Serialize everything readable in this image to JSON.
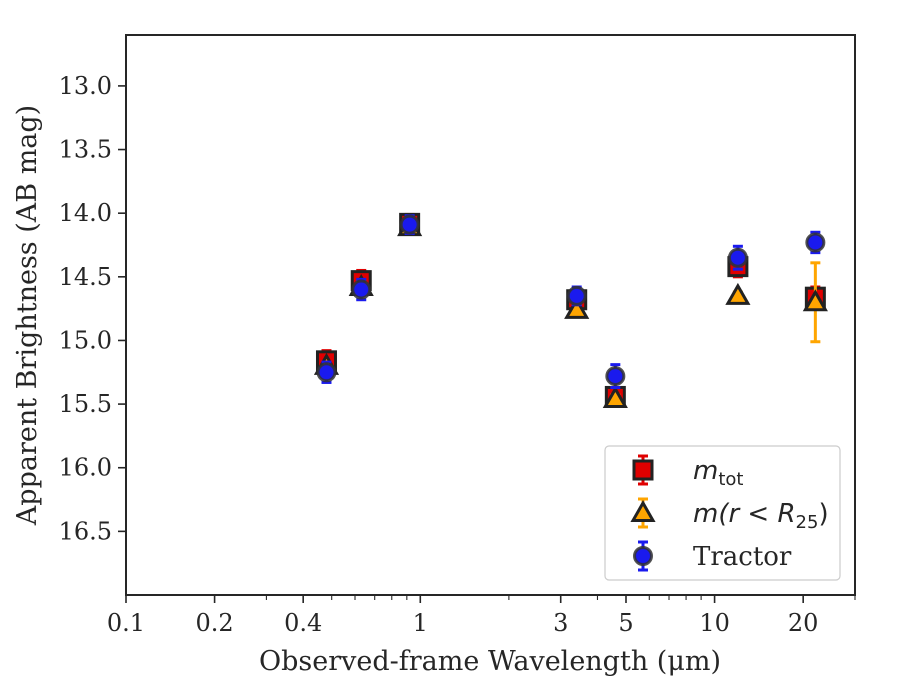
{
  "chart_data": {
    "type": "scatter",
    "xlabel": "Observed-frame Wavelength (μm)",
    "ylabel": "Apparent Brightness (AB mag)",
    "xscale": "log",
    "xlim": [
      0.1,
      30
    ],
    "ylim": [
      17.0,
      12.6
    ],
    "y_inverted": true,
    "xtick_labels": [
      {
        "value": 0.1,
        "label": "0.1"
      },
      {
        "value": 0.2,
        "label": "0.2"
      },
      {
        "value": 0.4,
        "label": "0.4"
      },
      {
        "value": 1,
        "label": "1"
      },
      {
        "value": 3,
        "label": "3"
      },
      {
        "value": 5,
        "label": "5"
      },
      {
        "value": 10,
        "label": "10"
      },
      {
        "value": 20,
        "label": "20"
      }
    ],
    "ytick_labels": [
      {
        "value": 13.0,
        "label": "13.0"
      },
      {
        "value": 13.5,
        "label": "13.5"
      },
      {
        "value": 14.0,
        "label": "14.0"
      },
      {
        "value": 14.5,
        "label": "14.5"
      },
      {
        "value": 15.0,
        "label": "15.0"
      },
      {
        "value": 15.5,
        "label": "15.5"
      },
      {
        "value": 16.0,
        "label": "16.0"
      },
      {
        "value": 16.5,
        "label": "16.5"
      }
    ],
    "grid": false,
    "legend_position": "bottom-right",
    "series": [
      {
        "name": "m_tot",
        "legend_main": "m",
        "legend_sub": "tot",
        "legend_tail": "",
        "marker": "square",
        "color": "#e00000",
        "points": [
          {
            "x": 0.48,
            "y": 15.16,
            "err": 0.08
          },
          {
            "x": 0.63,
            "y": 14.53,
            "err": 0.08
          },
          {
            "x": 0.92,
            "y": 14.08,
            "err": 0.07
          },
          {
            "x": 3.4,
            "y": 14.68,
            "err": 0.07
          },
          {
            "x": 4.6,
            "y": 15.44,
            "err": 0.07
          },
          {
            "x": 12.0,
            "y": 14.42,
            "err": 0.08
          },
          {
            "x": 22.0,
            "y": 14.66,
            "err": 0.08
          }
        ]
      },
      {
        "name": "m(r < R_25)",
        "legend_main": "m(r < R",
        "legend_sub": "25",
        "legend_tail": ")",
        "marker": "triangle",
        "color": "#ffa500",
        "points": [
          {
            "x": 0.48,
            "y": 15.2,
            "err": 0.03
          },
          {
            "x": 0.63,
            "y": 14.58,
            "err": 0.03
          },
          {
            "x": 0.92,
            "y": 14.11,
            "err": 0.03
          },
          {
            "x": 3.4,
            "y": 14.76,
            "err": 0.03
          },
          {
            "x": 4.6,
            "y": 15.46,
            "err": 0.03
          },
          {
            "x": 12.0,
            "y": 14.65,
            "err": 0.03
          },
          {
            "x": 22.0,
            "y": 14.7,
            "err": 0.31
          }
        ]
      },
      {
        "name": "Tractor",
        "legend_main": "Tractor",
        "legend_sub": "",
        "legend_tail": "",
        "marker": "circle",
        "color": "#1a1aee",
        "points": [
          {
            "x": 0.48,
            "y": 15.25,
            "err": 0.08
          },
          {
            "x": 0.63,
            "y": 14.6,
            "err": 0.08
          },
          {
            "x": 0.92,
            "y": 14.09,
            "err": 0.07
          },
          {
            "x": 3.4,
            "y": 14.65,
            "err": 0.07
          },
          {
            "x": 4.6,
            "y": 15.28,
            "err": 0.09
          },
          {
            "x": 12.0,
            "y": 14.35,
            "err": 0.09
          },
          {
            "x": 22.0,
            "y": 14.23,
            "err": 0.08
          }
        ]
      }
    ]
  }
}
